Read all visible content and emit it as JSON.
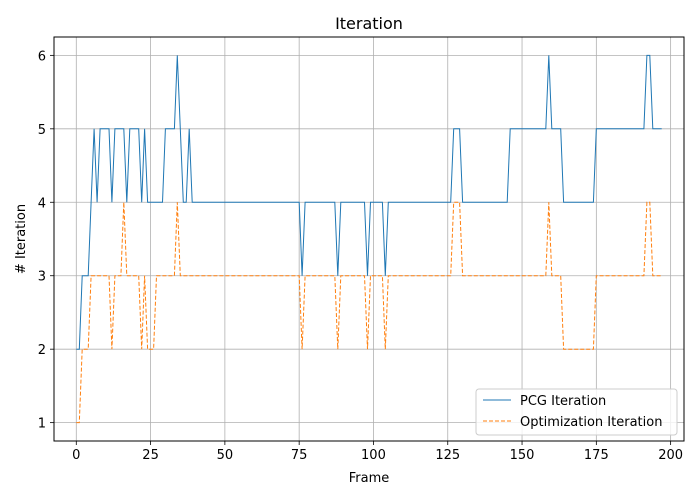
{
  "chart_data": {
    "type": "line",
    "title": "Iteration",
    "xlabel": "Frame",
    "ylabel": "# Iteration",
    "xlim": [
      -7.5,
      204.5
    ],
    "ylim": [
      0.75,
      6.25
    ],
    "xticks": [
      0,
      25,
      50,
      75,
      100,
      125,
      150,
      175,
      200
    ],
    "yticks": [
      1,
      2,
      3,
      4,
      5,
      6
    ],
    "grid": true,
    "legend_position": "lower-right",
    "series": [
      {
        "name": "PCG Iteration",
        "color": "#1f77b4",
        "style": "solid",
        "points": [
          [
            0,
            2
          ],
          [
            1,
            2
          ],
          [
            2,
            3
          ],
          [
            3,
            3
          ],
          [
            4,
            3
          ],
          [
            5,
            4
          ],
          [
            6,
            5
          ],
          [
            7,
            4
          ],
          [
            8,
            5
          ],
          [
            9,
            5
          ],
          [
            10,
            5
          ],
          [
            11,
            5
          ],
          [
            12,
            4
          ],
          [
            13,
            5
          ],
          [
            14,
            5
          ],
          [
            15,
            5
          ],
          [
            16,
            5
          ],
          [
            17,
            4
          ],
          [
            18,
            5
          ],
          [
            19,
            5
          ],
          [
            20,
            5
          ],
          [
            21,
            5
          ],
          [
            22,
            4
          ],
          [
            23,
            5
          ],
          [
            24,
            4
          ],
          [
            25,
            4
          ],
          [
            26,
            4
          ],
          [
            27,
            4
          ],
          [
            28,
            4
          ],
          [
            29,
            4
          ],
          [
            30,
            5
          ],
          [
            31,
            5
          ],
          [
            32,
            5
          ],
          [
            33,
            5
          ],
          [
            34,
            6
          ],
          [
            35,
            5
          ],
          [
            36,
            4
          ],
          [
            37,
            4
          ],
          [
            38,
            5
          ],
          [
            39,
            4
          ],
          [
            40,
            4
          ],
          [
            50,
            4
          ],
          [
            60,
            4
          ],
          [
            70,
            4
          ],
          [
            75,
            4
          ],
          [
            76,
            3
          ],
          [
            77,
            4
          ],
          [
            87,
            4
          ],
          [
            88,
            3
          ],
          [
            89,
            4
          ],
          [
            97,
            4
          ],
          [
            98,
            3
          ],
          [
            99,
            4
          ],
          [
            103,
            4
          ],
          [
            104,
            3
          ],
          [
            105,
            4
          ],
          [
            126,
            4
          ],
          [
            127,
            5
          ],
          [
            129,
            5
          ],
          [
            130,
            4
          ],
          [
            145,
            4
          ],
          [
            146,
            5
          ],
          [
            158,
            5
          ],
          [
            159,
            6
          ],
          [
            160,
            5
          ],
          [
            163,
            5
          ],
          [
            164,
            4
          ],
          [
            174,
            4
          ],
          [
            175,
            5
          ],
          [
            191,
            5
          ],
          [
            192,
            6
          ],
          [
            193,
            6
          ],
          [
            194,
            5
          ],
          [
            197,
            5
          ]
        ]
      },
      {
        "name": "Optimization Iteration",
        "color": "#ff7f0e",
        "style": "dashed",
        "points": [
          [
            0,
            1
          ],
          [
            1,
            1
          ],
          [
            2,
            2
          ],
          [
            3,
            2
          ],
          [
            4,
            2
          ],
          [
            5,
            3
          ],
          [
            6,
            3
          ],
          [
            7,
            3
          ],
          [
            8,
            3
          ],
          [
            9,
            3
          ],
          [
            10,
            3
          ],
          [
            11,
            3
          ],
          [
            12,
            2
          ],
          [
            13,
            3
          ],
          [
            14,
            3
          ],
          [
            15,
            3
          ],
          [
            16,
            4
          ],
          [
            17,
            3
          ],
          [
            18,
            3
          ],
          [
            19,
            3
          ],
          [
            20,
            3
          ],
          [
            21,
            3
          ],
          [
            22,
            2
          ],
          [
            23,
            3
          ],
          [
            24,
            2
          ],
          [
            25,
            2
          ],
          [
            26,
            2
          ],
          [
            27,
            3
          ],
          [
            28,
            3
          ],
          [
            29,
            3
          ],
          [
            30,
            3
          ],
          [
            31,
            3
          ],
          [
            32,
            3
          ],
          [
            33,
            3
          ],
          [
            34,
            4
          ],
          [
            35,
            3
          ],
          [
            36,
            3
          ],
          [
            37,
            3
          ],
          [
            38,
            3
          ],
          [
            40,
            3
          ],
          [
            50,
            3
          ],
          [
            60,
            3
          ],
          [
            70,
            3
          ],
          [
            75,
            3
          ],
          [
            76,
            2
          ],
          [
            77,
            3
          ],
          [
            87,
            3
          ],
          [
            88,
            2
          ],
          [
            89,
            3
          ],
          [
            97,
            3
          ],
          [
            98,
            2
          ],
          [
            99,
            3
          ],
          [
            103,
            3
          ],
          [
            104,
            2
          ],
          [
            105,
            3
          ],
          [
            126,
            3
          ],
          [
            127,
            4
          ],
          [
            129,
            4
          ],
          [
            130,
            3
          ],
          [
            158,
            3
          ],
          [
            159,
            4
          ],
          [
            160,
            3
          ],
          [
            163,
            3
          ],
          [
            164,
            2
          ],
          [
            174,
            2
          ],
          [
            175,
            3
          ],
          [
            191,
            3
          ],
          [
            192,
            4
          ],
          [
            193,
            4
          ],
          [
            194,
            3
          ],
          [
            197,
            3
          ]
        ]
      }
    ]
  }
}
